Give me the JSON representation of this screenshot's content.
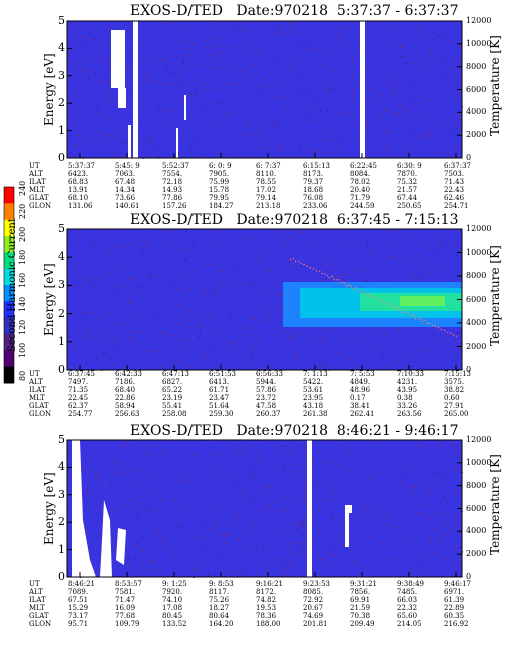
{
  "colorbar": {
    "label": "Second Harmonic Current",
    "ticks": [
      "240",
      "220",
      "200",
      "180",
      "160",
      "140",
      "120",
      "100",
      "80"
    ],
    "colors": [
      "#ff0000",
      "#ff7f00",
      "#ffff00",
      "#90ee20",
      "#00e080",
      "#00e0e0",
      "#0090ff",
      "#2030ff",
      "#3030c0",
      "#502080",
      "#500070",
      "#000000"
    ]
  },
  "panels": [
    {
      "title": "EXOS-D/TED",
      "date": "Date:970218",
      "time_range": "5:37:37 - 6:37:37",
      "ylabel": "Energy [eV]",
      "y2label": "Temperature [K]",
      "yticks": [
        "5",
        "4",
        "3",
        "2",
        "1",
        "0"
      ],
      "y2ticks": [
        "12000",
        "10000",
        "8000",
        "6000",
        "4000",
        "2000",
        "0"
      ],
      "row_labels": [
        "UT",
        "ALT",
        "ILAT",
        "MLT",
        "GLAT",
        "GLON"
      ],
      "columns": [
        [
          "5:37:37",
          "6423.",
          "68.83",
          "13.91",
          "68.10",
          "131.06"
        ],
        [
          "5:45: 9",
          "7063.",
          "67.48",
          "14.34",
          "73.66",
          "140.61"
        ],
        [
          "5:52:37",
          "7554.",
          "72.18",
          "14.93",
          "77.86",
          "157.26"
        ],
        [
          "6: 0: 9",
          "7905.",
          "75.99",
          "15.78",
          "79.95",
          "184.27"
        ],
        [
          "6: 7:37",
          "8110.",
          "78.55",
          "17.02",
          "79.14",
          "213.18"
        ],
        [
          "6:15:13",
          "8173.",
          "79.37",
          "18.68",
          "76.08",
          "233.06"
        ],
        [
          "6:22:45",
          "8084.",
          "78.02",
          "20.40",
          "71.79",
          "244.59"
        ],
        [
          "6:30: 9",
          "7870.",
          "75.32",
          "21.57",
          "67.44",
          "250.65"
        ],
        [
          "6:37:37",
          "7503.",
          "71.43",
          "22.43",
          "62.46",
          "254.71"
        ]
      ]
    },
    {
      "title": "EXOS-D/TED",
      "date": "Date:970218",
      "time_range": "6:37:45 - 7:15:13",
      "ylabel": "Energy [eV]",
      "y2label": "Temperature [K]",
      "yticks": [
        "5",
        "4",
        "3",
        "2",
        "1",
        "0"
      ],
      "y2ticks": [
        "12000",
        "10000",
        "8000",
        "6000",
        "4000",
        "2000",
        "0"
      ],
      "row_labels": [
        "UT",
        "ALT",
        "ILAT",
        "MLT",
        "GLAT",
        "GLON"
      ],
      "columns": [
        [
          "6:37:45",
          "7497.",
          "71.35",
          "22.45",
          "62.37",
          "254.77"
        ],
        [
          "6:42:33",
          "7186.",
          "68.40",
          "22.86",
          "58.94",
          "256.63"
        ],
        [
          "6:47:13",
          "6827.",
          "65.22",
          "23.19",
          "55.41",
          "258.08"
        ],
        [
          "6:51:53",
          "6413.",
          "61.71",
          "23.47",
          "51.64",
          "259.30"
        ],
        [
          "6:56:33",
          "5944.",
          "57.86",
          "23.72",
          "47.58",
          "260.37"
        ],
        [
          "7: 1:13",
          "5422.",
          "53.61",
          "23.95",
          "43.18",
          "261.38"
        ],
        [
          "7: 5:53",
          "4849.",
          "48.96",
          "0.17",
          "38.41",
          "262.41"
        ],
        [
          "7:10:33",
          "4231.",
          "43.95",
          "0.38",
          "33.26",
          "263.56"
        ],
        [
          "7:15:13",
          "3575.",
          "38.82",
          "0.60",
          "27.91",
          "265.00"
        ]
      ]
    },
    {
      "title": "EXOS-D/TED",
      "date": "Date:970218",
      "time_range": "8:46:21 - 9:46:17",
      "ylabel": "Energy [eV]",
      "y2label": "Temperature [K]",
      "yticks": [
        "5",
        "4",
        "3",
        "2",
        "1",
        "0"
      ],
      "y2ticks": [
        "12000",
        "10000",
        "8000",
        "6000",
        "4000",
        "2000",
        "0"
      ],
      "row_labels": [
        "UT",
        "ALT",
        "ILAT",
        "MLT",
        "GLAT",
        "GLON"
      ],
      "columns": [
        [
          "8:46:21",
          "7089.",
          "67.51",
          "15.29",
          "73.17",
          "95.71"
        ],
        [
          "8:53:57",
          "7581.",
          "71.47",
          "16.09",
          "77.68",
          "109.79"
        ],
        [
          "9: 1:25",
          "7920.",
          "74.10",
          "17.08",
          "80.45",
          "133.52"
        ],
        [
          "9: 8:53",
          "8117.",
          "75.26",
          "18.27",
          "80.64",
          "164.20"
        ],
        [
          "9:16:21",
          "8172.",
          "74.82",
          "19.53",
          "78.36",
          "188.00"
        ],
        [
          "9:23:53",
          "8085.",
          "72.92",
          "20.67",
          "74.69",
          "201.81"
        ],
        [
          "9:31:21",
          "7856.",
          "69.91",
          "21.59",
          "70.38",
          "209.49"
        ],
        [
          "9:38:49",
          "7485.",
          "66.03",
          "22.32",
          "65.60",
          "214.05"
        ],
        [
          "9:46:17",
          "6971.",
          "61.39",
          "22.89",
          "60.35",
          "216.92"
        ]
      ]
    }
  ]
}
